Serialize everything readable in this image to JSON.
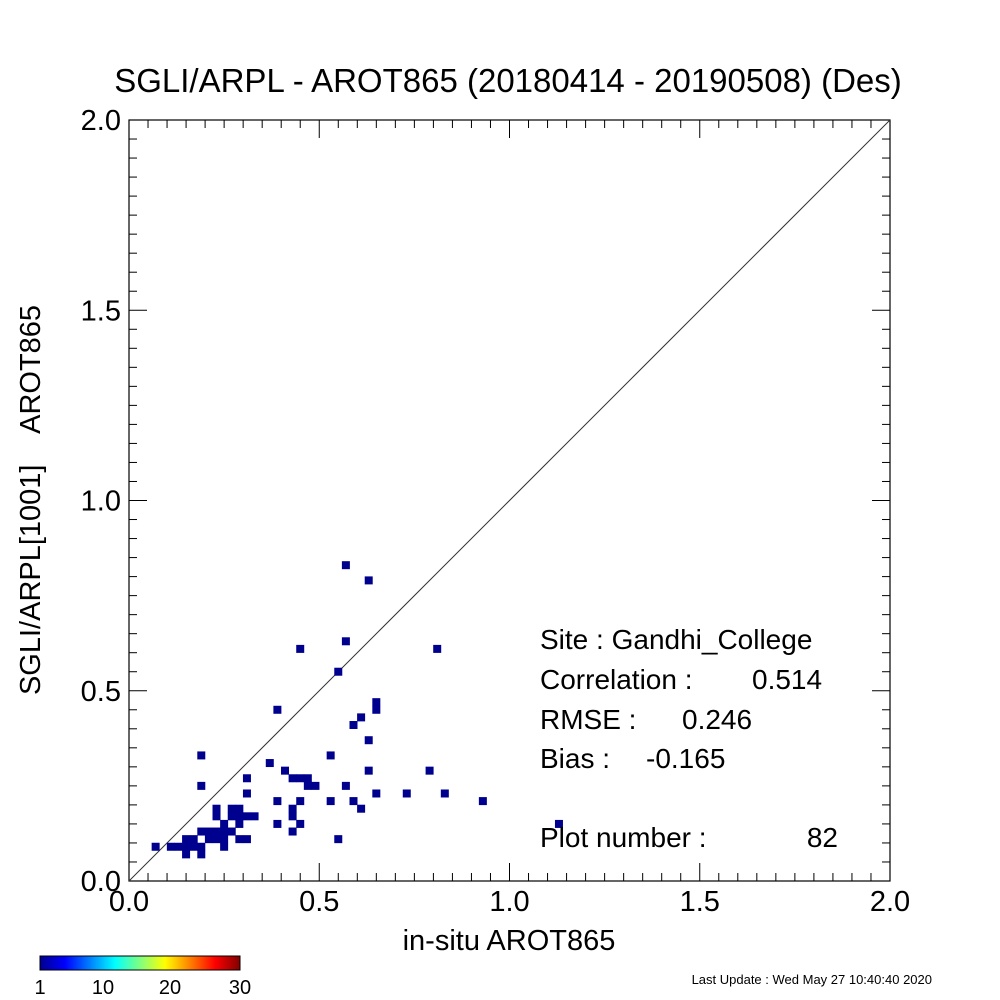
{
  "chart_data": {
    "type": "scatter",
    "title": "SGLI/ARPL - AROT865 (20180414 - 20190508) (Des)",
    "xlabel": "in-situ AROT865",
    "ylabel": "SGLI/ARPL[1001]    AROT865",
    "xlim": [
      0.0,
      2.0
    ],
    "ylim": [
      0.0,
      2.0
    ],
    "x_ticks": [
      "0.0",
      "0.5",
      "1.0",
      "1.5",
      "2.0"
    ],
    "y_ticks": [
      "0.0",
      "0.5",
      "1.0",
      "1.5",
      "2.0"
    ],
    "grid": false,
    "one_to_one_line": true,
    "marker_color": "#00008f",
    "points": [
      {
        "x": 0.07,
        "y": 0.09
      },
      {
        "x": 0.11,
        "y": 0.09
      },
      {
        "x": 0.13,
        "y": 0.09
      },
      {
        "x": 0.15,
        "y": 0.07
      },
      {
        "x": 0.15,
        "y": 0.09
      },
      {
        "x": 0.15,
        "y": 0.11
      },
      {
        "x": 0.17,
        "y": 0.09
      },
      {
        "x": 0.17,
        "y": 0.11
      },
      {
        "x": 0.19,
        "y": 0.07
      },
      {
        "x": 0.19,
        "y": 0.09
      },
      {
        "x": 0.19,
        "y": 0.13
      },
      {
        "x": 0.21,
        "y": 0.11
      },
      {
        "x": 0.21,
        "y": 0.13
      },
      {
        "x": 0.23,
        "y": 0.11
      },
      {
        "x": 0.23,
        "y": 0.13
      },
      {
        "x": 0.23,
        "y": 0.17
      },
      {
        "x": 0.23,
        "y": 0.19
      },
      {
        "x": 0.25,
        "y": 0.09
      },
      {
        "x": 0.25,
        "y": 0.11
      },
      {
        "x": 0.25,
        "y": 0.13
      },
      {
        "x": 0.25,
        "y": 0.15
      },
      {
        "x": 0.27,
        "y": 0.13
      },
      {
        "x": 0.27,
        "y": 0.17
      },
      {
        "x": 0.27,
        "y": 0.19
      },
      {
        "x": 0.29,
        "y": 0.11
      },
      {
        "x": 0.29,
        "y": 0.15
      },
      {
        "x": 0.29,
        "y": 0.17
      },
      {
        "x": 0.29,
        "y": 0.19
      },
      {
        "x": 0.31,
        "y": 0.11
      },
      {
        "x": 0.31,
        "y": 0.17
      },
      {
        "x": 0.31,
        "y": 0.23
      },
      {
        "x": 0.31,
        "y": 0.27
      },
      {
        "x": 0.33,
        "y": 0.17
      },
      {
        "x": 0.19,
        "y": 0.25
      },
      {
        "x": 0.19,
        "y": 0.33
      },
      {
        "x": 0.37,
        "y": 0.31
      },
      {
        "x": 0.39,
        "y": 0.15
      },
      {
        "x": 0.39,
        "y": 0.21
      },
      {
        "x": 0.39,
        "y": 0.45
      },
      {
        "x": 0.41,
        "y": 0.29
      },
      {
        "x": 0.43,
        "y": 0.13
      },
      {
        "x": 0.43,
        "y": 0.17
      },
      {
        "x": 0.43,
        "y": 0.19
      },
      {
        "x": 0.43,
        "y": 0.27
      },
      {
        "x": 0.45,
        "y": 0.15
      },
      {
        "x": 0.45,
        "y": 0.21
      },
      {
        "x": 0.45,
        "y": 0.27
      },
      {
        "x": 0.45,
        "y": 0.61
      },
      {
        "x": 0.47,
        "y": 0.25
      },
      {
        "x": 0.47,
        "y": 0.27
      },
      {
        "x": 0.49,
        "y": 0.25
      },
      {
        "x": 0.53,
        "y": 0.21
      },
      {
        "x": 0.53,
        "y": 0.33
      },
      {
        "x": 0.55,
        "y": 0.11
      },
      {
        "x": 0.55,
        "y": 0.55
      },
      {
        "x": 0.57,
        "y": 0.25
      },
      {
        "x": 0.57,
        "y": 0.63
      },
      {
        "x": 0.57,
        "y": 0.83
      },
      {
        "x": 0.59,
        "y": 0.21
      },
      {
        "x": 0.59,
        "y": 0.41
      },
      {
        "x": 0.61,
        "y": 0.19
      },
      {
        "x": 0.61,
        "y": 0.43
      },
      {
        "x": 0.63,
        "y": 0.29
      },
      {
        "x": 0.63,
        "y": 0.37
      },
      {
        "x": 0.63,
        "y": 0.79
      },
      {
        "x": 0.65,
        "y": 0.23
      },
      {
        "x": 0.65,
        "y": 0.45
      },
      {
        "x": 0.65,
        "y": 0.47
      },
      {
        "x": 0.73,
        "y": 0.23
      },
      {
        "x": 0.79,
        "y": 0.29
      },
      {
        "x": 0.81,
        "y": 0.61
      },
      {
        "x": 0.83,
        "y": 0.23
      },
      {
        "x": 0.93,
        "y": 0.21
      },
      {
        "x": 1.13,
        "y": 0.15
      }
    ]
  },
  "stats": {
    "site": "Site : Gandhi_College",
    "correlation_label": "Correlation :",
    "correlation_value": "0.514",
    "rmse_label": "RMSE :",
    "rmse_value": "0.246",
    "bias_label": "Bias :",
    "bias_value": "-0.165",
    "plot_number_label": "Plot number :",
    "plot_number_value": "82"
  },
  "colorbar": {
    "labels": [
      "1",
      "10",
      "20",
      "30"
    ],
    "colors": [
      "#00008f",
      "#0000ff",
      "#0080ff",
      "#00ffff",
      "#80ff80",
      "#ffff00",
      "#ff8000",
      "#ff0000",
      "#800000"
    ]
  },
  "footer": {
    "last_update": "Last Update : Wed May 27 10:40:40 2020"
  }
}
